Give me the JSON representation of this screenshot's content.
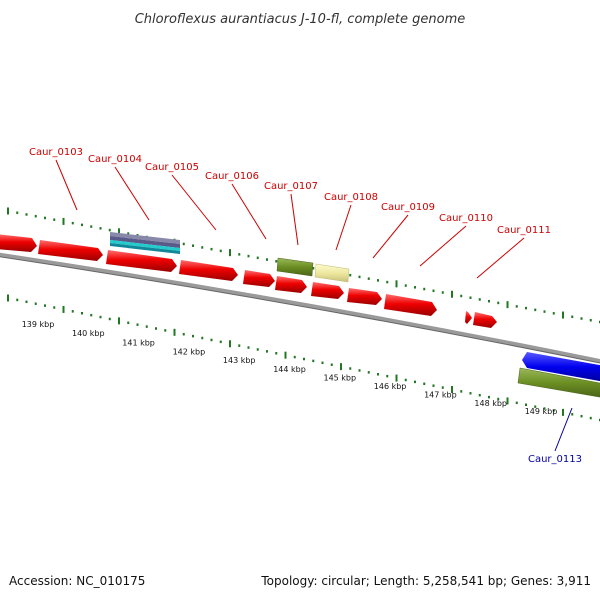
{
  "title": "Chloroflexus aurantiacus J-10-fl, complete genome",
  "footer": {
    "accession": "Accession: NC_010175",
    "topology": "Topology: circular; Length: 5,258,541 bp; Genes: 3,911"
  },
  "colors": {
    "label_forward": "#cc0000",
    "label_reverse": "#000099",
    "backbone": "#888888",
    "tick": "#227722",
    "gene_red": "#ee0000",
    "gene_olive": "#6b8e23",
    "gene_yellow": "#eee8a0",
    "gene_blue": "#0000ee",
    "gene_cyan": "#22cccc",
    "gene_purple": "#5a5a8a"
  },
  "gene_labels": [
    {
      "text": "Caur_0103",
      "strand": "forward"
    },
    {
      "text": "Caur_0104",
      "strand": "forward"
    },
    {
      "text": "Caur_0105",
      "strand": "forward"
    },
    {
      "text": "Caur_0106",
      "strand": "forward"
    },
    {
      "text": "Caur_0107",
      "strand": "forward"
    },
    {
      "text": "Caur_0108",
      "strand": "forward"
    },
    {
      "text": "Caur_0109",
      "strand": "forward"
    },
    {
      "text": "Caur_0110",
      "strand": "forward"
    },
    {
      "text": "Caur_0111",
      "strand": "forward"
    },
    {
      "text": "Caur_0113",
      "strand": "reverse"
    }
  ],
  "kbp_ticks": [
    "139 kbp",
    "140 kbp",
    "141 kbp",
    "142 kbp",
    "143 kbp",
    "144 kbp",
    "145 kbp",
    "146 kbp",
    "147 kbp",
    "148 kbp",
    "149 kbp"
  ]
}
